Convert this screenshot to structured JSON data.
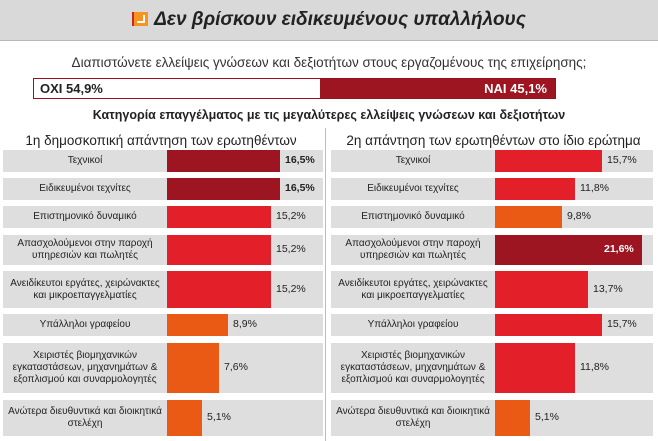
{
  "header": {
    "title": "Δεν βρίσκουν ειδικευμένους υπαλλήλους",
    "icon": "arrow-down-right-icon"
  },
  "question": "Διαπιστώνετε ελλείψεις γνώσεων και δεξιοτήτων στους εργαζομένους της επιχείρησης;",
  "answer_split": {
    "no_label": "ΟΧΙ 54,9%",
    "yes_label": "ΝΑΙ 45,1%",
    "no_value": 54.9,
    "yes_value": 45.1
  },
  "subtitle": "Κατηγορία επαγγέλματος με τις μεγαλύτερες ελλείψεις γνώσεων και δεξιοτήτων",
  "colors": {
    "dark_red": "#9e1522",
    "red": "#e3202a",
    "orange": "#ea5a14",
    "row_bg": "#dedede"
  },
  "chart_data": [
    {
      "type": "bar",
      "title": "1η δημοσκοπική απάντηση των ερωτηθέντων",
      "categories": [
        "Τεχνικοί",
        "Ειδικευμένοι τεχνίτες",
        "Επιστημονικό δυναμικό",
        "Απασχολούμενοι στην παροχή υπηρεσιών και πωλητές",
        "Ανειδίκευτοι εργάτες, χειρώνακτες και μικροεπαγγελματίες",
        "Υπάλληλοι γραφείου",
        "Χειριστές βιομηχανικών εγκαταστάσεων, μηχανημάτων & εξοπλισμού και συναρμολογητές",
        "Ανώτερα διευθυντικά και διοικητικά στελέχη"
      ],
      "values": [
        16.5,
        16.5,
        15.2,
        15.2,
        15.2,
        8.9,
        7.6,
        5.1
      ],
      "value_labels": [
        "16,5%",
        "16,5%",
        "15,2%",
        "15,2%",
        "15,2%",
        "8,9%",
        "7,6%",
        "5,1%"
      ],
      "bar_colors": [
        "dark_red",
        "dark_red",
        "red",
        "red",
        "red",
        "orange",
        "orange",
        "orange"
      ],
      "bold_labels": [
        true,
        true,
        false,
        false,
        false,
        false,
        false,
        false
      ]
    },
    {
      "type": "bar",
      "title": "2η απάντηση των ερωτηθέντων στο ίδιο ερώτημα",
      "categories": [
        "Τεχνικοί",
        "Ειδικευμένοι τεχνίτες",
        "Επιστημονικό δυναμικό",
        "Απασχολούμενοι στην παροχή υπηρεσιών και πωλητές",
        "Ανειδίκευτοι εργάτες, χειρώνακτες και μικροεπαγγελματίες",
        "Υπάλληλοι γραφείου",
        "Χειριστές βιομηχανικών εγκαταστάσεων, μηχανημάτων & εξοπλισμού και συναρμολογητές",
        "Ανώτερα διευθυντικά και διοικητικά στελέχη"
      ],
      "values": [
        15.7,
        11.8,
        9.8,
        21.6,
        13.7,
        15.7,
        11.8,
        5.1
      ],
      "value_labels": [
        "15,7%",
        "11,8%",
        "9,8%",
        "21,6%",
        "13,7%",
        "15,7%",
        "11,8%",
        "5,1%"
      ],
      "bar_colors": [
        "red",
        "red",
        "orange",
        "dark_red",
        "red",
        "red",
        "red",
        "orange"
      ],
      "bold_labels": [
        false,
        false,
        false,
        true,
        false,
        false,
        false,
        false
      ]
    }
  ]
}
